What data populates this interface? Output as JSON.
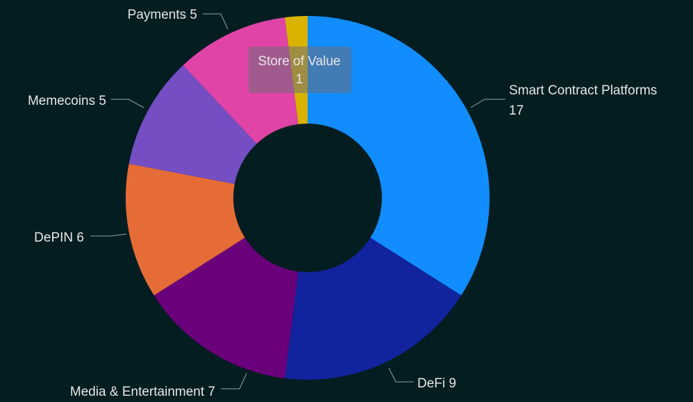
{
  "chart_data": {
    "type": "donut",
    "categories": [
      "Smart Contract Platforms",
      "DeFi",
      "Media & Entertainment",
      "DePIN",
      "Memecoins",
      "Payments",
      "Store of Value"
    ],
    "values": [
      17,
      9,
      7,
      6,
      5,
      5,
      1
    ],
    "colors": [
      "#118dff",
      "#12239e",
      "#6b007b",
      "#e66c37",
      "#744ec2",
      "#e044a7",
      "#d9b300"
    ]
  }
}
